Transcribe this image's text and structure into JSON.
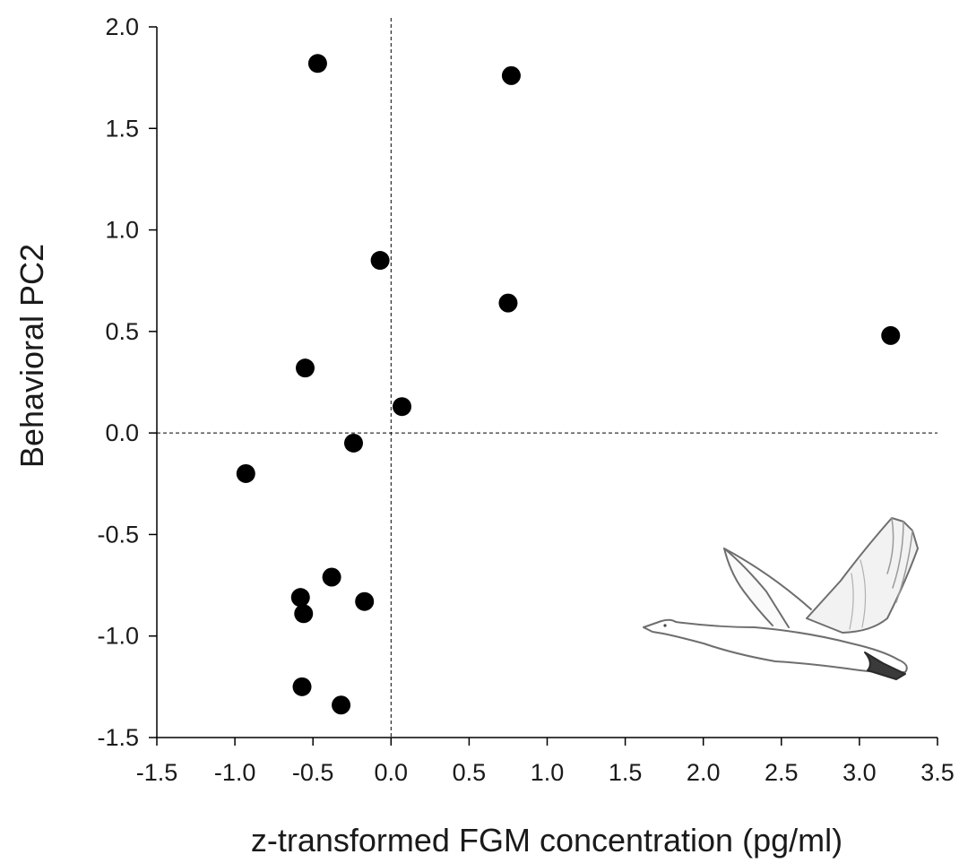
{
  "chart_data": {
    "type": "scatter",
    "xlabel": "z-transformed FGM concentration (pg/ml)",
    "ylabel": "Behavioral PC2",
    "xlim": [
      -1.5,
      3.5
    ],
    "ylim": [
      -1.5,
      2.0
    ],
    "x_ticks": [
      "-1.5",
      "-1.0",
      "-0.5",
      "0.0",
      "0.5",
      "1.0",
      "1.5",
      "2.0",
      "2.5",
      "3.0",
      "3.5"
    ],
    "y_ticks": [
      "2.0",
      "1.5",
      "1.0",
      "0.5",
      "0.0",
      "-0.5",
      "-1.0",
      "-1.5"
    ],
    "grid": false,
    "reference_lines": {
      "x": 0,
      "y": 0,
      "style": "dashed"
    },
    "marker_color": "#000000",
    "decoration": "swan-illustration",
    "series": [
      {
        "points": [
          {
            "x": -0.47,
            "y": 1.82
          },
          {
            "x": 0.77,
            "y": 1.76
          },
          {
            "x": -0.07,
            "y": 0.85
          },
          {
            "x": 0.75,
            "y": 0.64
          },
          {
            "x": 3.2,
            "y": 0.48
          },
          {
            "x": -0.55,
            "y": 0.32
          },
          {
            "x": 0.07,
            "y": 0.13
          },
          {
            "x": -0.24,
            "y": -0.05
          },
          {
            "x": -0.93,
            "y": -0.2
          },
          {
            "x": -0.38,
            "y": -0.71
          },
          {
            "x": -0.58,
            "y": -0.81
          },
          {
            "x": -0.17,
            "y": -0.83
          },
          {
            "x": -0.56,
            "y": -0.89
          },
          {
            "x": -0.57,
            "y": -1.25
          },
          {
            "x": -0.32,
            "y": -1.34
          }
        ]
      }
    ]
  }
}
